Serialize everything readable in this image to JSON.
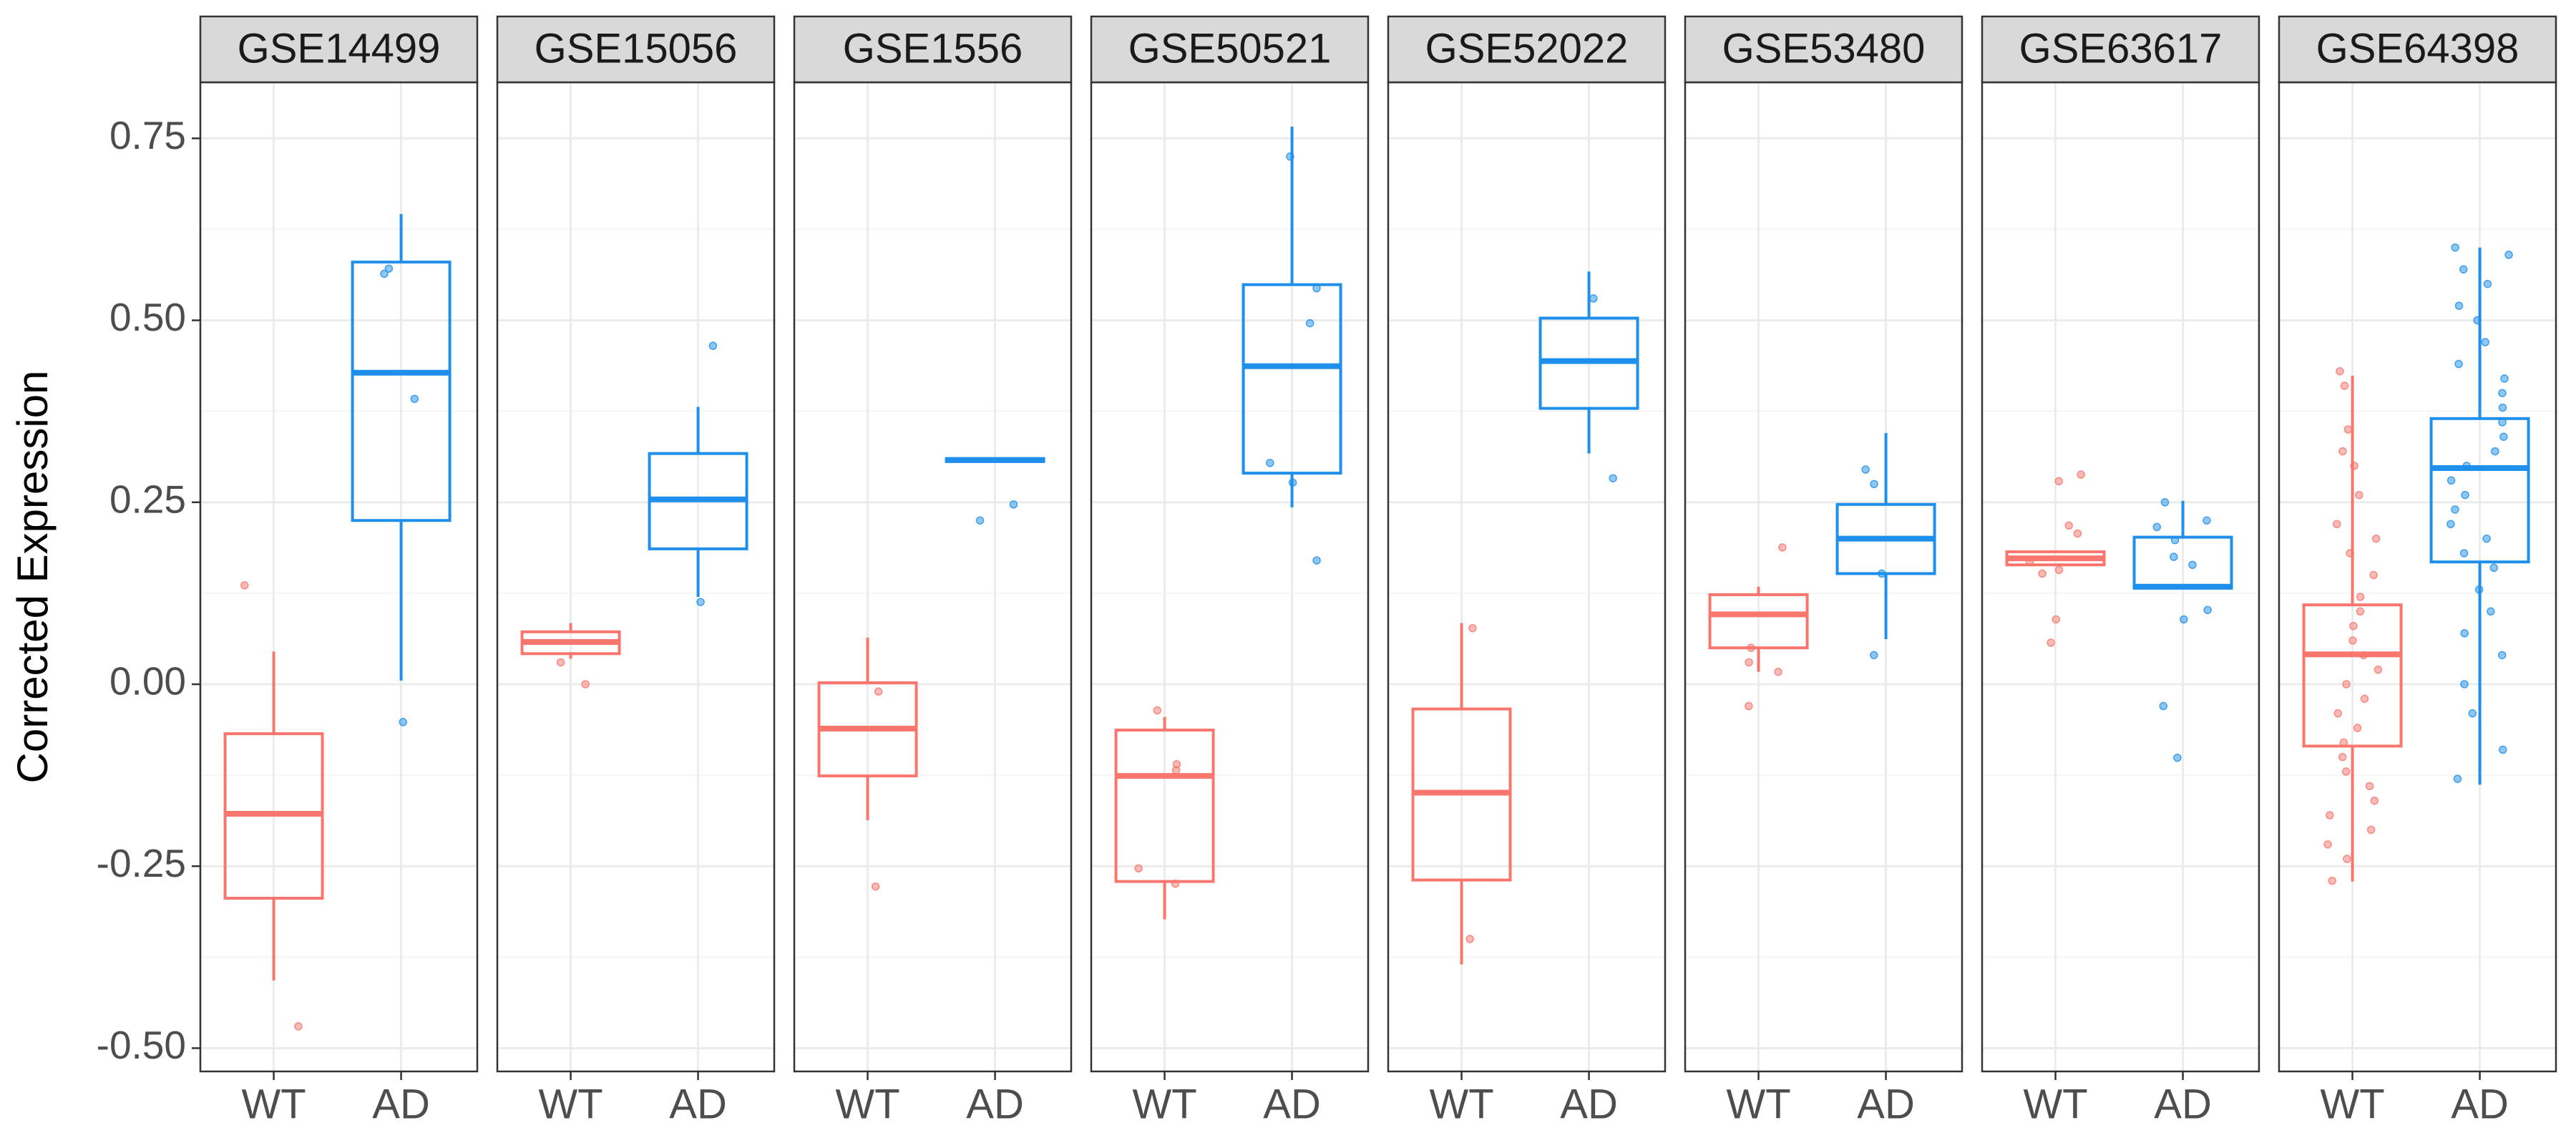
{
  "chart_data": {
    "type": "box",
    "ylabel": "Corrected Expression",
    "categories": [
      "WT",
      "AD"
    ],
    "colors": [
      "#f8766d",
      "#1e8fea"
    ],
    "ylim": [
      -0.532,
      0.827
    ],
    "yticks": [
      {
        "value": -0.5,
        "label": "-0.50"
      },
      {
        "value": -0.25,
        "label": "-0.25"
      },
      {
        "value": 0,
        "label": "0.00"
      },
      {
        "value": 0.25,
        "label": "0.25"
      },
      {
        "value": 0.5,
        "label": "0.50"
      },
      {
        "value": 0.75,
        "label": "0.75"
      }
    ],
    "grid": true,
    "facets": [
      {
        "title": "GSE14499",
        "boxes": [
          {
            "min": -0.407,
            "q1": -0.294,
            "median": -0.178,
            "q3": -0.068,
            "max": 0.045,
            "points": [
              0.136,
              -0.47
            ]
          },
          {
            "min": 0.005,
            "q1": 0.225,
            "median": 0.428,
            "q3": 0.58,
            "max": 0.646,
            "points": [
              0.571,
              0.564,
              0.392,
              -0.052
            ]
          }
        ]
      },
      {
        "title": "GSE15056",
        "boxes": [
          {
            "min": 0.035,
            "q1": 0.042,
            "median": 0.058,
            "q3": 0.072,
            "max": 0.084,
            "points": [
              0.03,
              0.0
            ]
          },
          {
            "min": 0.12,
            "q1": 0.186,
            "median": 0.254,
            "q3": 0.317,
            "max": 0.381,
            "points": [
              0.465,
              0.113
            ]
          }
        ]
      },
      {
        "title": "GSE1556",
        "boxes": [
          {
            "min": -0.187,
            "q1": -0.126,
            "median": -0.061,
            "q3": 0.002,
            "max": 0.064,
            "points": [
              -0.01,
              -0.278
            ]
          },
          {
            "min": 0.306,
            "q1": 0.306,
            "median": 0.308,
            "q3": 0.31,
            "max": 0.31,
            "points": [
              0.247,
              0.225
            ]
          }
        ]
      },
      {
        "title": "GSE50521",
        "boxes": [
          {
            "min": -0.323,
            "q1": -0.271,
            "median": -0.126,
            "q3": -0.063,
            "max": -0.045,
            "points": [
              -0.036,
              -0.11,
              -0.118,
              -0.253,
              -0.274
            ]
          },
          {
            "min": 0.243,
            "q1": 0.29,
            "median": 0.437,
            "q3": 0.549,
            "max": 0.766,
            "points": [
              0.725,
              0.544,
              0.496,
              0.304,
              0.277,
              0.17
            ]
          }
        ]
      },
      {
        "title": "GSE52022",
        "boxes": [
          {
            "min": -0.385,
            "q1": -0.269,
            "median": -0.149,
            "q3": -0.034,
            "max": 0.084,
            "points": [
              0.077,
              -0.35
            ]
          },
          {
            "min": 0.317,
            "q1": 0.379,
            "median": 0.444,
            "q3": 0.503,
            "max": 0.567,
            "points": [
              0.53,
              0.283
            ]
          }
        ]
      },
      {
        "title": "GSE53480",
        "boxes": [
          {
            "min": 0.017,
            "q1": 0.05,
            "median": 0.096,
            "q3": 0.123,
            "max": 0.134,
            "points": [
              0.188,
              0.05,
              0.03,
              0.017,
              -0.03
            ]
          },
          {
            "min": 0.062,
            "q1": 0.152,
            "median": 0.2,
            "q3": 0.247,
            "max": 0.345,
            "points": [
              0.295,
              0.275,
              0.152,
              0.04
            ]
          }
        ]
      },
      {
        "title": "GSE63617",
        "boxes": [
          {
            "min": 0.164,
            "q1": 0.164,
            "median": 0.173,
            "q3": 0.182,
            "max": 0.182,
            "points": [
              0.288,
              0.279,
              0.218,
              0.207,
              0.168,
              0.152,
              0.157,
              0.089,
              0.057
            ]
          },
          {
            "min": 0.13,
            "q1": 0.132,
            "median": 0.134,
            "q3": 0.202,
            "max": 0.252,
            "points": [
              0.25,
              0.225,
              0.216,
              0.198,
              0.175,
              0.164,
              0.102,
              0.089,
              -0.03,
              -0.101
            ]
          }
        ]
      },
      {
        "title": "GSE64398",
        "boxes": [
          {
            "min": -0.271,
            "q1": -0.085,
            "median": 0.041,
            "q3": 0.109,
            "max": 0.424,
            "points": [
              0.43,
              0.41,
              0.35,
              0.32,
              0.3,
              0.26,
              0.22,
              0.2,
              0.18,
              0.15,
              0.12,
              0.1,
              0.08,
              0.06,
              0.04,
              0.02,
              0.0,
              -0.02,
              -0.04,
              -0.06,
              -0.08,
              -0.1,
              -0.12,
              -0.14,
              -0.16,
              -0.18,
              -0.2,
              -0.22,
              -0.24,
              -0.27
            ]
          },
          {
            "min": -0.138,
            "q1": 0.168,
            "median": 0.297,
            "q3": 0.365,
            "max": 0.6,
            "points": [
              0.6,
              0.59,
              0.57,
              0.55,
              0.52,
              0.5,
              0.47,
              0.44,
              0.42,
              0.4,
              0.38,
              0.36,
              0.34,
              0.32,
              0.3,
              0.28,
              0.26,
              0.24,
              0.22,
              0.2,
              0.18,
              0.16,
              0.13,
              0.1,
              0.07,
              0.04,
              0.0,
              -0.04,
              -0.09,
              -0.13
            ]
          }
        ]
      }
    ]
  }
}
